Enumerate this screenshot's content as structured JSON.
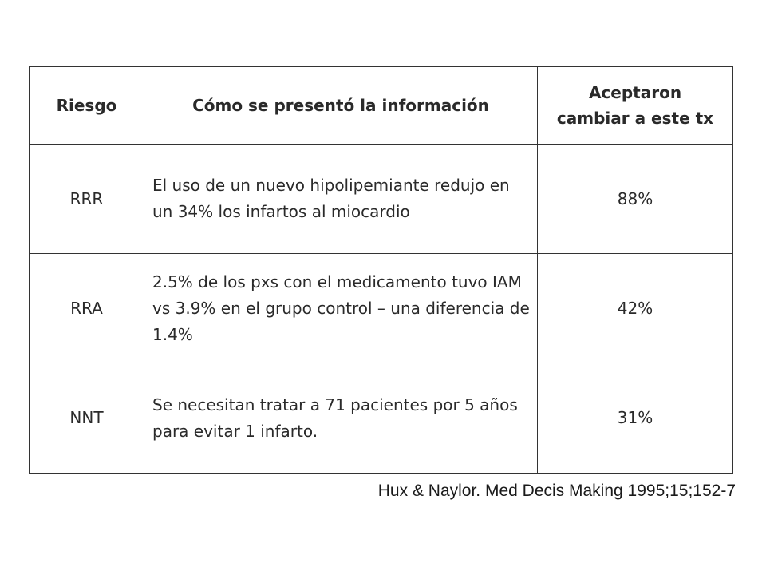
{
  "table": {
    "headers": {
      "risk": "Riesgo",
      "info": "Cómo se presentó la información",
      "accepted": "Aceptaron cambiar a este tx"
    },
    "rows": [
      {
        "risk": "RRR",
        "info": "El uso de un nuevo hipolipemiante redujo en un 34% los infartos al miocardio",
        "accepted": "88%"
      },
      {
        "risk": "RRA",
        "info": "2.5% de los pxs con el medicamento tuvo IAM vs 3.9% en el grupo control – una diferencia de 1.4%",
        "accepted": "42%"
      },
      {
        "risk": "NNT",
        "info": "Se necesitan tratar a 71 pacientes por 5 años para evitar 1 infarto.",
        "accepted": "31%"
      }
    ]
  },
  "citation": "Hux & Naylor. Med Decis Making 1995;15;152-7"
}
